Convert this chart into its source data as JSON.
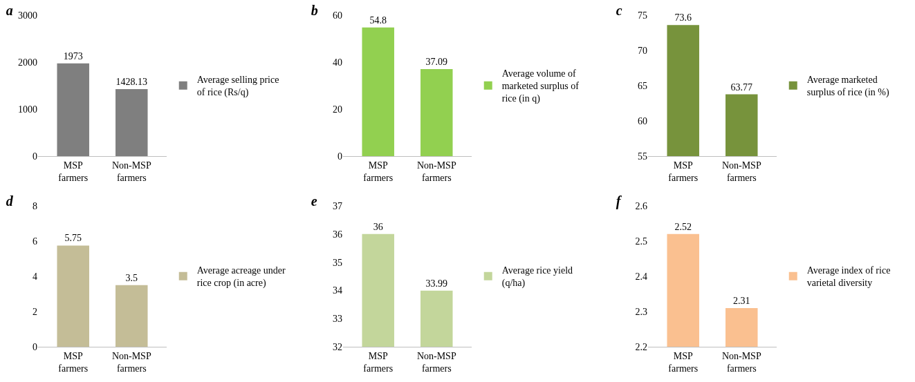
{
  "chart_data": [
    {
      "type": "bar",
      "title": "a",
      "categories": [
        "MSP farmers",
        "Non-MSP farmers"
      ],
      "series": [
        {
          "name": "Average selling price of rice (Rs/q)",
          "color": "#7f7f7f",
          "values": [
            1973,
            1428.13
          ]
        }
      ],
      "ylim": [
        0,
        3000
      ],
      "yticks": [
        0,
        1000,
        2000,
        3000
      ],
      "data_labels": true,
      "legend": "right",
      "grid": false
    },
    {
      "type": "bar",
      "title": "b",
      "categories": [
        "MSP farmers",
        "Non-MSP farmers"
      ],
      "series": [
        {
          "name": "Average volume of marketed surplus of rice (in q)",
          "color": "#92d050",
          "values": [
            54.8,
            37.09
          ]
        }
      ],
      "ylim": [
        0,
        60
      ],
      "yticks": [
        0,
        20,
        40,
        60
      ],
      "data_labels": true,
      "legend": "right",
      "grid": false
    },
    {
      "type": "bar",
      "title": "c",
      "categories": [
        "MSP farmers",
        "Non-MSP farmers"
      ],
      "series": [
        {
          "name": "Average marketed surplus of rice (in %)",
          "color": "#77933c",
          "values": [
            73.6,
            63.77
          ]
        }
      ],
      "ylim": [
        55,
        75
      ],
      "yticks": [
        55,
        60,
        65,
        70,
        75
      ],
      "data_labels": true,
      "legend": "right",
      "grid": false
    },
    {
      "type": "bar",
      "title": "d",
      "categories": [
        "MSP farmers",
        "Non-MSP farmers"
      ],
      "series": [
        {
          "name": "Average acreage under rice crop (in acre)",
          "color": "#c4bd97",
          "values": [
            5.75,
            3.5
          ]
        }
      ],
      "ylim": [
        0,
        8
      ],
      "yticks": [
        0,
        2,
        4,
        6,
        8
      ],
      "data_labels": true,
      "legend": "right",
      "grid": false
    },
    {
      "type": "bar",
      "title": "e",
      "categories": [
        "MSP farmers",
        "Non-MSP farmers"
      ],
      "series": [
        {
          "name": "Average rice yield (q/ha)",
          "color": "#c3d69b",
          "values": [
            36,
            33.99
          ]
        }
      ],
      "ylim": [
        32,
        37
      ],
      "yticks": [
        32,
        33,
        34,
        35,
        36,
        37
      ],
      "data_labels": true,
      "legend": "right",
      "grid": false
    },
    {
      "type": "bar",
      "title": "f",
      "categories": [
        "MSP farmers",
        "Non-MSP farmers"
      ],
      "series": [
        {
          "name": "Average index of rice varietal diversity",
          "color": "#fac090",
          "values": [
            2.52,
            2.31
          ]
        }
      ],
      "ylim": [
        2.2,
        2.6
      ],
      "yticks": [
        2.2,
        2.3,
        2.4,
        2.5,
        2.6
      ],
      "data_labels": true,
      "legend": "right",
      "grid": false
    }
  ]
}
